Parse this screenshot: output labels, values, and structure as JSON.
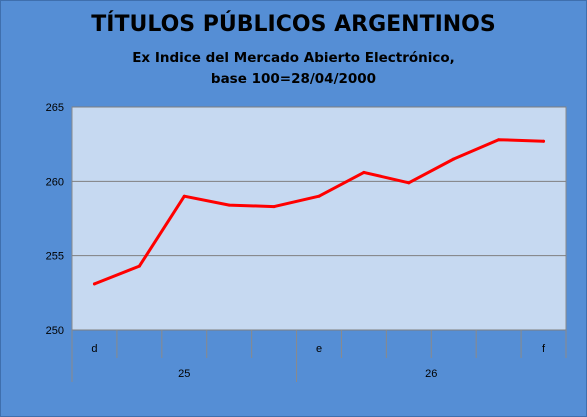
{
  "chart_data": {
    "type": "line",
    "title": "TÍTULOS PÚBLICOS ARGENTINOS",
    "subtitle": [
      "Ex Indice del Mercado Abierto Electrónico,",
      "base 100=28/04/2000"
    ],
    "xlabel": "",
    "ylabel": "",
    "ylim": [
      250,
      265
    ],
    "yticks": [
      250,
      255,
      260,
      265
    ],
    "grid": true,
    "legend": "none",
    "x_sublabels": [
      "d",
      "",
      "",
      "",
      "",
      "e",
      "",
      "",
      "",
      "",
      "f"
    ],
    "x_group_labels": [
      {
        "label": "25",
        "span": [
          0,
          5
        ]
      },
      {
        "label": "26",
        "span": [
          5,
          11
        ]
      }
    ],
    "series": [
      {
        "color": "#ff0000",
        "values": [
          253.1,
          254.3,
          259.0,
          258.4,
          258.3,
          259.0,
          260.6,
          259.9,
          261.5,
          262.8,
          262.7
        ]
      }
    ]
  },
  "colors": {
    "background": "#558ed5",
    "plot_area": "#c6d9f1",
    "gridline": "#7f7f7f",
    "line": "#ff0000"
  }
}
